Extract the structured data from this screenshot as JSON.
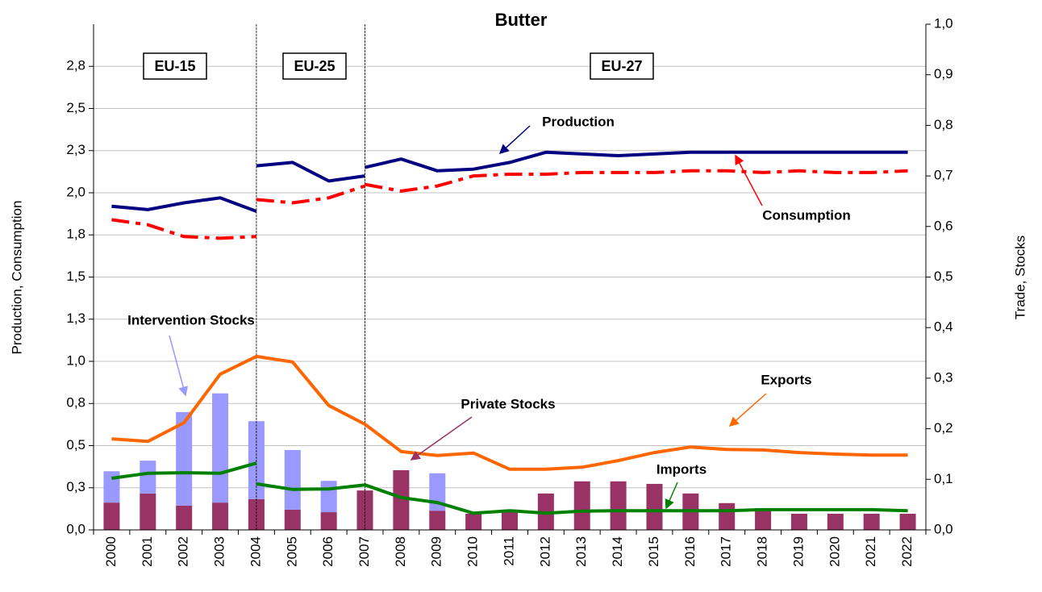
{
  "chart_data": {
    "type": "bar_line",
    "title": "Butter",
    "y_label": "Production, Consumption",
    "y2_label": "Trade, Stocks",
    "categories": [
      "2000",
      "2001",
      "2002",
      "2003",
      "2004",
      "2005",
      "2006",
      "2007",
      "2008",
      "2009",
      "2010",
      "2011",
      "2012",
      "2013",
      "2014",
      "2015",
      "2016",
      "2017",
      "2018",
      "2019",
      "2020",
      "2021",
      "2022"
    ],
    "regions": [
      "EU-15",
      "EU-25",
      "EU-27"
    ],
    "ylim": [
      0,
      3
    ],
    "yticks": [
      {
        "value": 0,
        "label": "0,0"
      },
      {
        "value": 0.25,
        "label": "0,3"
      },
      {
        "value": 0.5,
        "label": "0,5"
      },
      {
        "value": 0.75,
        "label": "0,8"
      },
      {
        "value": 1,
        "label": "1,0"
      },
      {
        "value": 1.25,
        "label": "1,3"
      },
      {
        "value": 1.5,
        "label": "1,5"
      },
      {
        "value": 1.75,
        "label": "1,8"
      },
      {
        "value": 2,
        "label": "2,0"
      },
      {
        "value": 2.25,
        "label": "2,3"
      },
      {
        "value": 2.5,
        "label": "2,5"
      },
      {
        "value": 2.75,
        "label": "2,8"
      }
    ],
    "y2lim": [
      0,
      1
    ],
    "y2ticks": [
      {
        "value": 0,
        "label": "0,0"
      },
      {
        "value": 0.1,
        "label": "0,1"
      },
      {
        "value": 0.2,
        "label": "0,2"
      },
      {
        "value": 0.3,
        "label": "0,3"
      },
      {
        "value": 0.4,
        "label": "0,4"
      },
      {
        "value": 0.5,
        "label": "0,5"
      },
      {
        "value": 0.6,
        "label": "0,6"
      },
      {
        "value": 0.7,
        "label": "0,7"
      },
      {
        "value": 0.8,
        "label": "0,8"
      },
      {
        "value": 0.9,
        "label": "0,9"
      },
      {
        "value": 1,
        "label": "1,0"
      }
    ],
    "grid": true,
    "stacked": true,
    "series": [
      {
        "name": "Production",
        "type": "line",
        "color": "#000080",
        "style": "solid",
        "segments": [
          {
            "values": [
              1.92,
              1.9,
              1.94,
              1.97,
              1.89,
              null,
              null,
              null,
              null,
              null,
              null,
              null,
              null,
              null,
              null,
              null,
              null,
              null,
              null,
              null,
              null,
              null,
              null
            ]
          },
          {
            "values": [
              null,
              null,
              null,
              null,
              2.16,
              2.18,
              2.07,
              2.1,
              null,
              null,
              null,
              null,
              null,
              null,
              null,
              null,
              null,
              null,
              null,
              null,
              null,
              null,
              null
            ]
          },
          {
            "values": [
              null,
              null,
              null,
              null,
              null,
              null,
              null,
              2.15,
              2.2,
              2.13,
              2.14,
              2.18,
              2.24,
              2.23,
              2.22,
              2.23,
              2.24,
              2.24,
              2.24,
              2.24,
              2.24,
              2.24,
              2.24
            ]
          }
        ]
      },
      {
        "name": "Consumption",
        "type": "line",
        "color": "#ff0000",
        "style": "dash-dot",
        "segments": [
          {
            "values": [
              1.84,
              1.81,
              1.74,
              1.73,
              1.74,
              null,
              null,
              null,
              null,
              null,
              null,
              null,
              null,
              null,
              null,
              null,
              null,
              null,
              null,
              null,
              null,
              null,
              null
            ]
          },
          {
            "values": [
              null,
              null,
              null,
              null,
              1.96,
              1.94,
              1.97,
              2.04,
              null,
              null,
              null,
              null,
              null,
              null,
              null,
              null,
              null,
              null,
              null,
              null,
              null,
              null,
              null
            ]
          },
          {
            "values": [
              null,
              null,
              null,
              null,
              null,
              null,
              null,
              2.05,
              2.01,
              2.04,
              2.1,
              2.11,
              2.11,
              2.12,
              2.12,
              2.12,
              2.13,
              2.13,
              2.12,
              2.13,
              2.12,
              2.12,
              2.13
            ]
          }
        ]
      },
      {
        "name": "Exports",
        "type": "line",
        "axis": "y2",
        "color": "#ff6600",
        "style": "solid",
        "segments": [
          {
            "values": [
              0.18,
              0.175,
              0.212,
              0.308,
              0.343,
              0.332,
              0.246,
              0.209,
              0.155,
              0.147,
              0.152,
              0.12,
              0.12,
              0.124,
              0.137,
              0.153,
              0.164,
              0.159,
              0.158,
              0.153,
              0.15,
              0.148,
              0.148
            ]
          }
        ]
      },
      {
        "name": "Imports",
        "type": "line",
        "axis": "y2",
        "color": "#008000",
        "style": "solid",
        "segments": [
          {
            "values": [
              0.102,
              0.112,
              0.113,
              0.112,
              0.132,
              null,
              null,
              null,
              null,
              null,
              null,
              null,
              null,
              null,
              null,
              null,
              null,
              null,
              null,
              null,
              null,
              null,
              null
            ]
          },
          {
            "values": [
              null,
              null,
              null,
              null,
              0.091,
              0.08,
              0.081,
              0.089,
              null,
              null,
              null,
              null,
              null,
              null,
              null,
              null,
              null,
              null,
              null,
              null,
              null,
              null,
              null
            ]
          },
          {
            "values": [
              null,
              null,
              null,
              null,
              null,
              null,
              null,
              0.089,
              0.064,
              0.054,
              0.033,
              0.038,
              0.033,
              0.037,
              0.038,
              0.038,
              0.038,
              0.038,
              0.04,
              0.04,
              0.04,
              0.04,
              0.038
            ]
          }
        ]
      },
      {
        "name": "Private Stocks",
        "type": "bar",
        "axis": "y2",
        "color": "#993366",
        "values": [
          0.054,
          0.072,
          0.048,
          0.054,
          0.061,
          0.04,
          0.035,
          0.078,
          0.118,
          0.038,
          0.032,
          0.04,
          0.072,
          0.096,
          0.096,
          0.091,
          0.072,
          0.053,
          0.043,
          0.032,
          0.032,
          0.032,
          0.032
        ]
      },
      {
        "name": "Intervention Stocks",
        "type": "bar",
        "axis": "y2",
        "color": "#9999ff",
        "values": [
          0.062,
          0.065,
          0.185,
          0.216,
          0.154,
          0.118,
          0.062,
          0,
          0,
          0.074,
          0,
          0,
          0,
          0,
          0,
          0,
          0,
          0,
          0,
          0,
          0,
          0,
          0
        ]
      }
    ]
  }
}
